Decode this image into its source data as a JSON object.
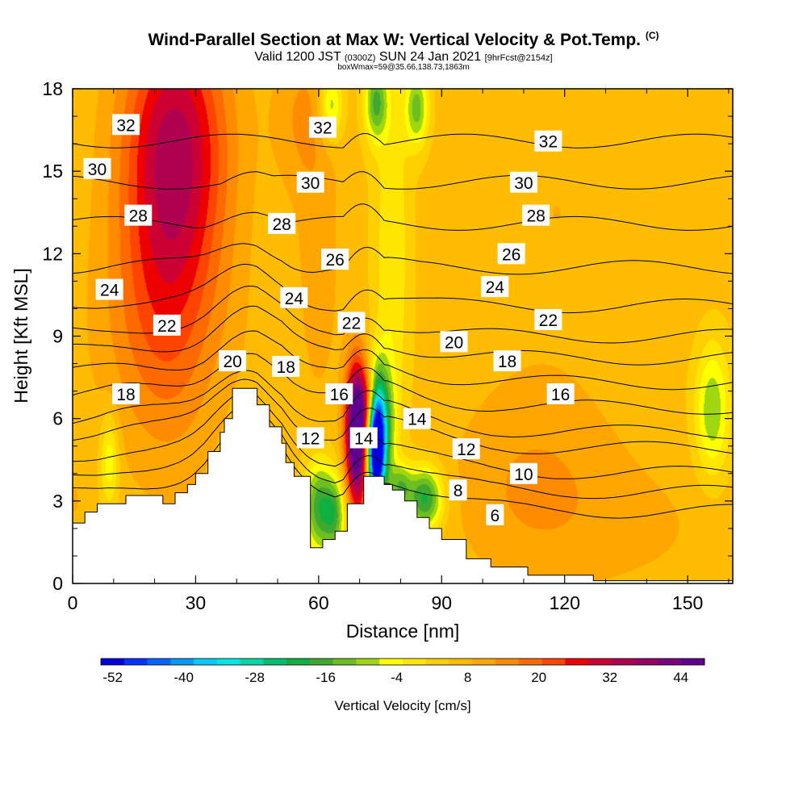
{
  "title": "Wind-Parallel Section at Max W: Vertical Velocity & Pot.Temp.",
  "title_mark": "(C)",
  "subtitle_prefix": "Valid 1200 JST",
  "subtitle_zulu": "(0300Z)",
  "subtitle_date": "SUN 24 Jan 2021",
  "subtitle_fcst": "[9hrFcst@2154z]",
  "subtitle2": "boxWmax=59@35.66,138.73,1863m",
  "colors": {
    "ground": "#ffffff",
    "contour": "#000000"
  },
  "chart_data": {
    "type": "heatmap",
    "xlabel": "Distance [nm]",
    "ylabel": "Height [Kft MSL]",
    "xlim": [
      0,
      161
    ],
    "ylim": [
      0,
      18
    ],
    "x_ticks": [
      "0",
      "30",
      "60",
      "90",
      "120",
      "150"
    ],
    "y_ticks": [
      "0",
      "3",
      "6",
      "9",
      "12",
      "15",
      "18"
    ],
    "colorbar": {
      "label": "Vertical Velocity [cm/s]",
      "tick_labels": [
        "-52",
        "-40",
        "-28",
        "-16",
        "-4",
        "8",
        "20",
        "32",
        "44"
      ],
      "min": -54,
      "max": 48,
      "step": 4,
      "colors": [
        "#0000e0",
        "#0033ff",
        "#0066ff",
        "#0099ff",
        "#00ccff",
        "#00e6e6",
        "#00d9a6",
        "#00c070",
        "#10b040",
        "#40a830",
        "#6cbf1f",
        "#9ed60f",
        "#ffff00",
        "#ffe600",
        "#ffd000",
        "#ffbc00",
        "#ffa600",
        "#ff8c00",
        "#ff6a00",
        "#ff4400",
        "#ee0000",
        "#cc0033",
        "#b00050",
        "#990066",
        "#7a0080",
        "#600090"
      ]
    },
    "terrain_profile": [
      [
        0,
        2.2
      ],
      [
        3,
        2.2
      ],
      [
        3,
        2.6
      ],
      [
        6,
        2.6
      ],
      [
        6,
        2.9
      ],
      [
        13,
        2.9
      ],
      [
        13,
        3.2
      ],
      [
        22,
        3.2
      ],
      [
        22,
        2.9
      ],
      [
        25,
        2.9
      ],
      [
        25,
        3.3
      ],
      [
        28,
        3.3
      ],
      [
        28,
        3.6
      ],
      [
        30,
        3.6
      ],
      [
        30,
        4.0
      ],
      [
        33,
        4.0
      ],
      [
        33,
        4.8
      ],
      [
        36,
        4.8
      ],
      [
        36,
        5.5
      ],
      [
        37,
        5.5
      ],
      [
        37,
        6.0
      ],
      [
        39,
        6.0
      ],
      [
        39,
        7.1
      ],
      [
        45,
        7.1
      ],
      [
        45,
        6.5
      ],
      [
        48,
        6.5
      ],
      [
        48,
        5.7
      ],
      [
        51,
        5.7
      ],
      [
        51,
        5.1
      ],
      [
        52,
        5.1
      ],
      [
        52,
        4.4
      ],
      [
        54,
        4.4
      ],
      [
        54,
        3.9
      ],
      [
        58,
        3.9
      ],
      [
        58,
        1.3
      ],
      [
        61,
        1.3
      ],
      [
        61,
        1.6
      ],
      [
        64,
        1.6
      ],
      [
        64,
        1.9
      ],
      [
        67,
        1.9
      ],
      [
        67,
        2.9
      ],
      [
        71,
        2.9
      ],
      [
        71,
        3.9
      ],
      [
        76,
        3.9
      ],
      [
        76,
        3.6
      ],
      [
        78,
        3.6
      ],
      [
        78,
        3.4
      ],
      [
        81,
        3.4
      ],
      [
        81,
        3.0
      ],
      [
        84,
        3.0
      ],
      [
        84,
        2.4
      ],
      [
        87,
        2.4
      ],
      [
        87,
        2.0
      ],
      [
        90,
        2.0
      ],
      [
        90,
        1.6
      ],
      [
        96,
        1.6
      ],
      [
        96,
        0.9
      ],
      [
        102,
        0.9
      ],
      [
        102,
        0.6
      ],
      [
        111,
        0.6
      ],
      [
        111,
        0.3
      ],
      [
        127,
        0.3
      ],
      [
        127,
        0.1
      ],
      [
        161,
        0.1
      ]
    ],
    "theta_contours": [
      {
        "label": "6",
        "base": 2.6
      },
      {
        "label": "8",
        "base": 3.3
      },
      {
        "label": "10",
        "base": 4.0
      },
      {
        "label": "12",
        "base": 4.9
      },
      {
        "label": "14",
        "base": 5.5
      },
      {
        "label": "16",
        "base": 6.4
      },
      {
        "label": "18",
        "base": 7.3
      },
      {
        "label": "20",
        "base": 8.2
      },
      {
        "label": "22",
        "base": 9.0
      },
      {
        "label": "24",
        "base": 10.1
      },
      {
        "label": "26",
        "base": 11.5
      },
      {
        "label": "28",
        "base": 13.1
      },
      {
        "label": "30",
        "base": 14.6
      },
      {
        "label": "32",
        "base": 16.1
      }
    ],
    "contour_labels": [
      {
        "text": "32",
        "x": 13,
        "y": 16.7
      },
      {
        "text": "32",
        "x": 61,
        "y": 16.6
      },
      {
        "text": "32",
        "x": 116,
        "y": 16.1
      },
      {
        "text": "30",
        "x": 6,
        "y": 15.1
      },
      {
        "text": "30",
        "x": 58,
        "y": 14.6
      },
      {
        "text": "30",
        "x": 110,
        "y": 14.6
      },
      {
        "text": "28",
        "x": 16,
        "y": 13.4
      },
      {
        "text": "28",
        "x": 51,
        "y": 13.1
      },
      {
        "text": "28",
        "x": 113,
        "y": 13.4
      },
      {
        "text": "26",
        "x": 64,
        "y": 11.8
      },
      {
        "text": "26",
        "x": 107,
        "y": 12.0
      },
      {
        "text": "24",
        "x": 9,
        "y": 10.7
      },
      {
        "text": "24",
        "x": 54,
        "y": 10.4
      },
      {
        "text": "24",
        "x": 103,
        "y": 10.8
      },
      {
        "text": "22",
        "x": 23,
        "y": 9.4
      },
      {
        "text": "22",
        "x": 68,
        "y": 9.5
      },
      {
        "text": "22",
        "x": 116,
        "y": 9.6
      },
      {
        "text": "20",
        "x": 39,
        "y": 8.1
      },
      {
        "text": "20",
        "x": 93,
        "y": 8.8
      },
      {
        "text": "18",
        "x": 13,
        "y": 6.9
      },
      {
        "text": "18",
        "x": 52,
        "y": 7.9
      },
      {
        "text": "18",
        "x": 106,
        "y": 8.1
      },
      {
        "text": "16",
        "x": 65,
        "y": 6.9
      },
      {
        "text": "16",
        "x": 119,
        "y": 6.9
      },
      {
        "text": "14",
        "x": 84,
        "y": 6.0
      },
      {
        "text": "14",
        "x": 71,
        "y": 5.3
      },
      {
        "text": "12",
        "x": 58,
        "y": 5.3
      },
      {
        "text": "12",
        "x": 96,
        "y": 4.9
      },
      {
        "text": "10",
        "x": 110,
        "y": 4.0
      },
      {
        "text": "8",
        "x": 94,
        "y": 3.4
      },
      {
        "text": "6",
        "x": 103,
        "y": 2.5
      }
    ],
    "velocity_field": [
      {
        "x": 24,
        "y": 13.0,
        "sx": 9,
        "sy": 5,
        "v": 28
      },
      {
        "x": 26,
        "y": 16.5,
        "sx": 9,
        "sy": 3,
        "v": 20
      },
      {
        "x": 14,
        "y": 9.0,
        "sx": 10,
        "sy": 3,
        "v": 10
      },
      {
        "x": 118,
        "y": 13.5,
        "sx": 18,
        "sy": 5,
        "v": 10
      },
      {
        "x": 112,
        "y": 3.5,
        "sx": 14,
        "sy": 2.5,
        "v": 14
      },
      {
        "x": 140,
        "y": 2.0,
        "sx": 18,
        "sy": 2,
        "v": 10
      },
      {
        "x": 60,
        "y": 11.5,
        "sx": 4,
        "sy": 4,
        "v": 12
      },
      {
        "x": 56,
        "y": 17.0,
        "sx": 5,
        "sy": 2,
        "v": 14
      },
      {
        "x": 74,
        "y": 17.5,
        "sx": 2,
        "sy": 1.0,
        "v": -14
      },
      {
        "x": 84,
        "y": 17.3,
        "sx": 2,
        "sy": 1.0,
        "v": -12
      },
      {
        "x": 63,
        "y": 17.4,
        "sx": 2,
        "sy": 0.9,
        "v": -10
      },
      {
        "x": 78,
        "y": 12.0,
        "sx": 3,
        "sy": 5,
        "v": -2
      },
      {
        "x": 69,
        "y": 5.6,
        "sx": 1.8,
        "sy": 1.7,
        "v": 42
      },
      {
        "x": 70,
        "y": 5.0,
        "sx": 2.0,
        "sy": 2.0,
        "v": 28
      },
      {
        "x": 72,
        "y": 6.6,
        "sx": 1.8,
        "sy": 0.8,
        "v": 22
      },
      {
        "x": 74,
        "y": 4.8,
        "sx": 1.4,
        "sy": 1.4,
        "v": -52
      },
      {
        "x": 75,
        "y": 5.7,
        "sx": 2.2,
        "sy": 1.6,
        "v": -24
      },
      {
        "x": 60,
        "y": 2.8,
        "sx": 2.5,
        "sy": 1.2,
        "v": -16
      },
      {
        "x": 64,
        "y": 2.5,
        "sx": 2,
        "sy": 1.0,
        "v": -12
      },
      {
        "x": 86,
        "y": 3.1,
        "sx": 3,
        "sy": 0.8,
        "v": -20
      },
      {
        "x": 80,
        "y": 3.5,
        "sx": 2,
        "sy": 0.6,
        "v": -10
      },
      {
        "x": 156,
        "y": 6.3,
        "sx": 3,
        "sy": 1.7,
        "v": -10
      },
      {
        "x": 9,
        "y": 4.5,
        "sx": 1.6,
        "sy": 1.2,
        "v": -6
      },
      {
        "x": 0.5,
        "y": 3.0,
        "sx": 1.5,
        "sy": 1.0,
        "v": 10
      },
      {
        "x": 148,
        "y": 14.0,
        "sx": 8,
        "sy": 4,
        "v": 8
      },
      {
        "x": 40,
        "y": 9.5,
        "sx": 4,
        "sy": 2,
        "v": 8
      }
    ]
  }
}
